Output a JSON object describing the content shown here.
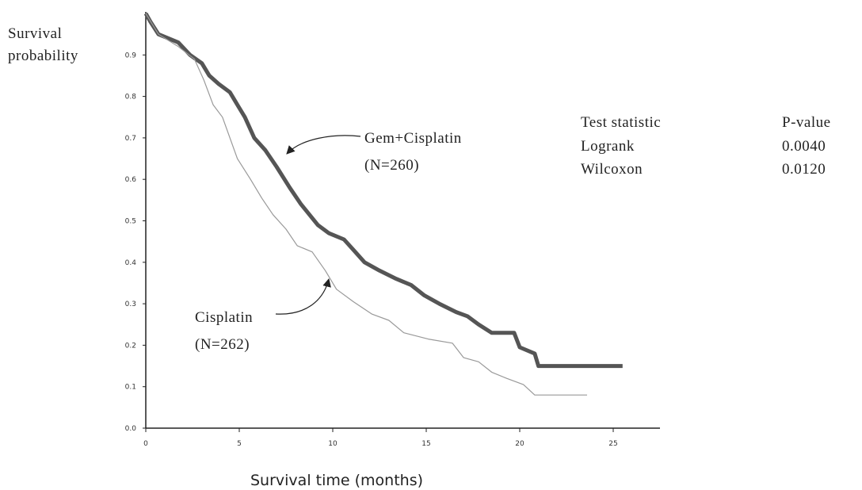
{
  "chart_data": {
    "type": "line",
    "ylabel": [
      "Survival",
      "probability"
    ],
    "xlabel": "Survival time (months)",
    "xlim": [
      0,
      27.5
    ],
    "xticks": [
      0,
      5,
      10,
      15,
      20,
      25
    ],
    "ylim": [
      0,
      1
    ],
    "yticks": [
      {
        "value": 0,
        "label": "0.0"
      },
      0.1,
      0.2,
      0.3,
      0.4,
      0.5,
      0.6,
      0.7,
      0.8,
      0.9
    ],
    "series": [
      {
        "name": "Gem+Cisplatin",
        "n_label": "(N=260)",
        "color": "#555555",
        "x": [
          0,
          0.25,
          0.68,
          1.74,
          2.37,
          3.0,
          3.4,
          3.9,
          4.5,
          4.9,
          5.3,
          5.8,
          6.4,
          7.0,
          7.7,
          8.3,
          9.2,
          9.8,
          10.6,
          11.1,
          11.7,
          12.5,
          13.4,
          14.2,
          14.9,
          15.7,
          16.6,
          17.2,
          17.8,
          18.5,
          19.7,
          20.0,
          20.8,
          21.0,
          25.5
        ],
        "values": [
          1.0,
          0.98,
          0.95,
          0.93,
          0.9,
          0.88,
          0.85,
          0.83,
          0.81,
          0.78,
          0.75,
          0.7,
          0.67,
          0.63,
          0.58,
          0.54,
          0.49,
          0.47,
          0.455,
          0.43,
          0.4,
          0.38,
          0.36,
          0.345,
          0.32,
          0.3,
          0.28,
          0.27,
          0.25,
          0.23,
          0.23,
          0.195,
          0.18,
          0.15,
          0.15
        ]
      },
      {
        "name": "Cisplatin",
        "n_label": "(N=262)",
        "color": "#999999",
        "x": [
          0,
          0.68,
          1.74,
          2.6,
          3.1,
          3.6,
          4.1,
          4.5,
          4.9,
          5.6,
          6.2,
          6.8,
          7.5,
          8.1,
          8.9,
          9.6,
          10.2,
          11.1,
          12.1,
          13.0,
          13.8,
          15.1,
          16.4,
          17.0,
          17.8,
          18.5,
          19.3,
          20.2,
          20.8,
          23.6
        ],
        "values": [
          1.0,
          0.95,
          0.92,
          0.89,
          0.84,
          0.78,
          0.75,
          0.7,
          0.65,
          0.6,
          0.555,
          0.515,
          0.48,
          0.44,
          0.425,
          0.38,
          0.335,
          0.305,
          0.275,
          0.26,
          0.23,
          0.215,
          0.205,
          0.17,
          0.16,
          0.135,
          0.12,
          0.105,
          0.08,
          0.08
        ]
      }
    ],
    "stats": {
      "header": [
        "Test statistic",
        "P-value"
      ],
      "rows": [
        [
          "Logrank",
          "0.0040"
        ],
        [
          "Wilcoxon",
          "0.0120"
        ]
      ]
    }
  }
}
